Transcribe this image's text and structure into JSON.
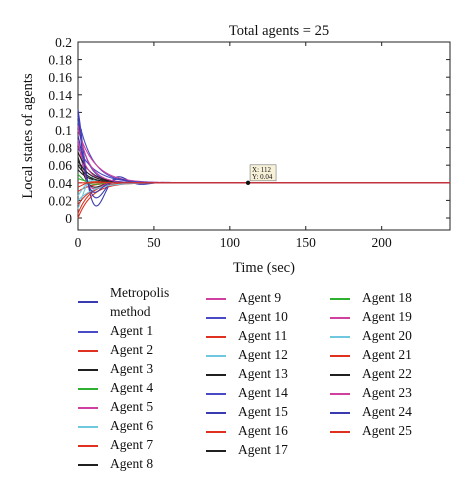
{
  "chart_data": {
    "type": "line",
    "title": "Total agents = 25",
    "xlabel": "Time (sec)",
    "ylabel": "Local states of agents",
    "xlim": [
      0,
      245
    ],
    "ylim": [
      0,
      0.2
    ],
    "xticks": [
      "0",
      "50",
      "100",
      "150",
      "200"
    ],
    "yticks": [
      "0",
      "0.02",
      "0.04",
      "0.06",
      "0.08",
      "0.1",
      "0.12",
      "0.14",
      "0.16",
      "0.18",
      "0.2"
    ],
    "grid": false,
    "legend_placement": "bottom",
    "consensus_value": 0.04,
    "annotation": {
      "x_text": "X: 112",
      "y_text": "Y: 0.04",
      "x": 112,
      "y": 0.04
    },
    "series": [
      {
        "name": "Metropolis method",
        "color": "#3b3bb0",
        "initial": 0.125
      },
      {
        "name": "Agent 1",
        "color": "#4a4ac4",
        "initial": 0.115
      },
      {
        "name": "Agent 2",
        "color": "#e03020",
        "initial": 0.03
      },
      {
        "name": "Agent 3",
        "color": "#202020",
        "initial": 0.07
      },
      {
        "name": "Agent 4",
        "color": "#30b030",
        "initial": 0.045
      },
      {
        "name": "Agent 5",
        "color": "#d040a0",
        "initial": 0.1
      },
      {
        "name": "Agent 6",
        "color": "#70c8e0",
        "initial": 0.01
      },
      {
        "name": "Agent 7",
        "color": "#e03020",
        "initial": 0.005
      },
      {
        "name": "Agent 8",
        "color": "#202020",
        "initial": 0.055
      },
      {
        "name": "Agent 9",
        "color": "#d040a0",
        "initial": 0.09
      },
      {
        "name": "Agent 10",
        "color": "#4a4ac4",
        "initial": 0.08
      },
      {
        "name": "Agent 11",
        "color": "#e03020",
        "initial": 0.0
      },
      {
        "name": "Agent 12",
        "color": "#70c8e0",
        "initial": 0.025
      },
      {
        "name": "Agent 13",
        "color": "#202020",
        "initial": 0.06
      },
      {
        "name": "Agent 14",
        "color": "#4a4ac4",
        "initial": 0.11
      },
      {
        "name": "Agent 15",
        "color": "#3b3bb0",
        "initial": 0.095
      },
      {
        "name": "Agent 16",
        "color": "#e03020",
        "initial": 0.015
      },
      {
        "name": "Agent 17",
        "color": "#202020",
        "initial": 0.075
      },
      {
        "name": "Agent 18",
        "color": "#30b030",
        "initial": 0.05
      },
      {
        "name": "Agent 19",
        "color": "#d040a0",
        "initial": 0.085
      },
      {
        "name": "Agent 20",
        "color": "#70c8e0",
        "initial": 0.02
      },
      {
        "name": "Agent 21",
        "color": "#e03020",
        "initial": 0.035
      },
      {
        "name": "Agent 22",
        "color": "#202020",
        "initial": 0.065
      },
      {
        "name": "Agent 23",
        "color": "#d040a0",
        "initial": 0.105
      },
      {
        "name": "Agent 24",
        "color": "#3b3bb0",
        "initial": 0.12
      },
      {
        "name": "Agent 25",
        "color": "#e03020",
        "initial": 0.04
      }
    ]
  }
}
